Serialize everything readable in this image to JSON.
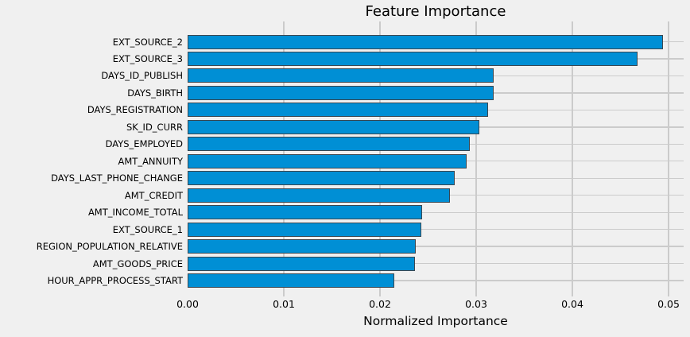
{
  "chart_data": {
    "type": "bar",
    "orientation": "horizontal",
    "title": "Feature Importance",
    "xlabel": "Normalized Importance",
    "categories": [
      "EXT_SOURCE_2",
      "EXT_SOURCE_3",
      "DAYS_ID_PUBLISH",
      "DAYS_BIRTH",
      "DAYS_REGISTRATION",
      "SK_ID_CURR",
      "DAYS_EMPLOYED",
      "AMT_ANNUITY",
      "DAYS_LAST_PHONE_CHANGE",
      "AMT_CREDIT",
      "AMT_INCOME_TOTAL",
      "EXT_SOURCE_1",
      "REGION_POPULATION_RELATIVE",
      "AMT_GOODS_PRICE",
      "HOUR_APPR_PROCESS_START"
    ],
    "values": [
      0.0494,
      0.0468,
      0.0318,
      0.0318,
      0.0312,
      0.0303,
      0.0293,
      0.029,
      0.0278,
      0.0273,
      0.0244,
      0.0243,
      0.0237,
      0.0236,
      0.0215
    ],
    "x_ticks": [
      "0.00",
      "0.01",
      "0.02",
      "0.03",
      "0.04",
      "0.05"
    ],
    "x_tick_values": [
      0,
      0.01,
      0.02,
      0.03,
      0.04,
      0.05
    ],
    "xlim": [
      0,
      0.0516
    ],
    "grid": true,
    "legend": "none",
    "colors": {
      "background": "#f0f0f0",
      "bar_fill": "#008fd5",
      "bar_edge": "#3b4750",
      "gridline": "#cbcbcb",
      "text": "#000000"
    }
  }
}
